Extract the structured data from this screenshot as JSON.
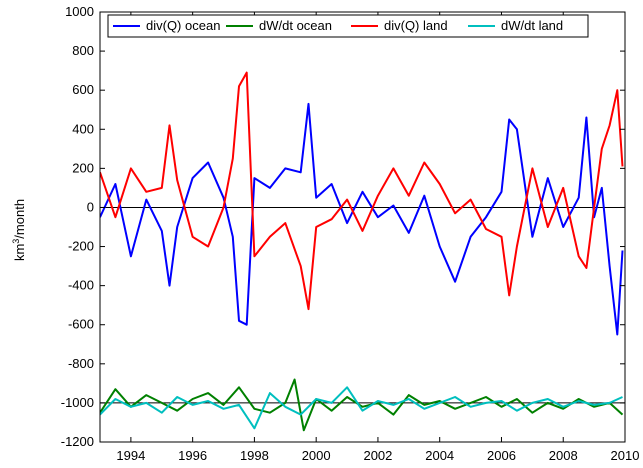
{
  "chart_data": {
    "type": "line",
    "title": "",
    "xlabel": "",
    "ylabel": "km³/month",
    "ylabel_parts": {
      "base": "km",
      "sup": "3",
      "rest": "/month"
    },
    "xlim": [
      1993.0,
      2010.0
    ],
    "ylim": [
      -1200,
      1000
    ],
    "xticks": [
      1994,
      1996,
      1998,
      2000,
      2002,
      2004,
      2006,
      2008,
      2010
    ],
    "yticks": [
      -1200,
      -1000,
      -800,
      -600,
      -400,
      -200,
      0,
      200,
      400,
      600,
      800,
      1000
    ],
    "reference_lines": [
      0,
      -1000
    ],
    "grid": false,
    "legend_position": "top",
    "colors": {
      "div_ocean": "#0000ff",
      "dw_ocean": "#008000",
      "div_land": "#ff0000",
      "dw_land": "#00bfbf",
      "reference": "#000000"
    },
    "series": [
      {
        "name": "div(Q) ocean",
        "key": "div_ocean",
        "x": [
          1993.0,
          1993.5,
          1994.0,
          1994.5,
          1995.0,
          1995.25,
          1995.5,
          1996.0,
          1996.5,
          1997.0,
          1997.3,
          1997.5,
          1997.75,
          1998.0,
          1998.5,
          1999.0,
          1999.5,
          1999.75,
          2000.0,
          2000.5,
          2001.0,
          2001.5,
          2002.0,
          2002.5,
          2003.0,
          2003.5,
          2004.0,
          2004.5,
          2005.0,
          2005.5,
          2006.0,
          2006.25,
          2006.5,
          2007.0,
          2007.5,
          2008.0,
          2008.5,
          2008.75,
          2009.0,
          2009.25,
          2009.5,
          2009.75,
          2009.92
        ],
        "values": [
          -50,
          120,
          -250,
          40,
          -120,
          -400,
          -100,
          150,
          230,
          50,
          -150,
          -580,
          -600,
          150,
          100,
          200,
          180,
          530,
          50,
          120,
          -80,
          80,
          -50,
          10,
          -130,
          60,
          -200,
          -380,
          -150,
          -50,
          80,
          450,
          400,
          -150,
          150,
          -100,
          50,
          460,
          -50,
          100,
          -300,
          -650,
          -220
        ]
      },
      {
        "name": "dW/dt ocean",
        "key": "dw_ocean",
        "x": [
          1993.0,
          1993.5,
          1994.0,
          1994.5,
          1995.0,
          1995.5,
          1996.0,
          1996.5,
          1997.0,
          1997.5,
          1998.0,
          1998.5,
          1999.0,
          1999.3,
          1999.6,
          2000.0,
          2000.5,
          2001.0,
          2001.5,
          2002.0,
          2002.5,
          2003.0,
          2003.5,
          2004.0,
          2004.5,
          2005.0,
          2005.5,
          2006.0,
          2006.5,
          2007.0,
          2007.5,
          2008.0,
          2008.5,
          2009.0,
          2009.5,
          2009.92
        ],
        "values": [
          -1050,
          -930,
          -1020,
          -960,
          -1000,
          -1040,
          -980,
          -950,
          -1010,
          -920,
          -1030,
          -1050,
          -1000,
          -880,
          -1140,
          -980,
          -1040,
          -970,
          -1020,
          -1000,
          -1060,
          -960,
          -1010,
          -990,
          -1030,
          -1000,
          -970,
          -1020,
          -980,
          -1050,
          -1000,
          -1030,
          -980,
          -1020,
          -1000,
          -1060
        ]
      },
      {
        "name": "div(Q) land",
        "key": "div_land",
        "x": [
          1993.0,
          1993.5,
          1994.0,
          1994.5,
          1995.0,
          1995.25,
          1995.5,
          1996.0,
          1996.5,
          1997.0,
          1997.3,
          1997.5,
          1997.75,
          1998.0,
          1998.5,
          1999.0,
          1999.5,
          1999.75,
          2000.0,
          2000.5,
          2001.0,
          2001.5,
          2002.0,
          2002.5,
          2003.0,
          2003.5,
          2004.0,
          2004.5,
          2005.0,
          2005.5,
          2006.0,
          2006.25,
          2006.5,
          2007.0,
          2007.5,
          2008.0,
          2008.5,
          2008.75,
          2009.0,
          2009.25,
          2009.5,
          2009.75,
          2009.92
        ],
        "values": [
          180,
          -50,
          200,
          80,
          100,
          420,
          140,
          -150,
          -200,
          0,
          250,
          620,
          690,
          -250,
          -150,
          -80,
          -300,
          -520,
          -100,
          -60,
          40,
          -120,
          60,
          200,
          60,
          230,
          120,
          -30,
          40,
          -110,
          -150,
          -450,
          -200,
          200,
          -100,
          100,
          -250,
          -310,
          0,
          300,
          420,
          600,
          210
        ]
      },
      {
        "name": "dW/dt land",
        "key": "dw_land",
        "x": [
          1993.0,
          1993.5,
          1994.0,
          1994.5,
          1995.0,
          1995.5,
          1996.0,
          1996.5,
          1997.0,
          1997.5,
          1998.0,
          1998.5,
          1999.0,
          1999.5,
          2000.0,
          2000.5,
          2001.0,
          2001.5,
          2002.0,
          2002.5,
          2003.0,
          2003.5,
          2004.0,
          2004.5,
          2005.0,
          2005.5,
          2006.0,
          2006.5,
          2007.0,
          2007.5,
          2008.0,
          2008.5,
          2009.0,
          2009.5,
          2009.92
        ],
        "values": [
          -1060,
          -980,
          -1020,
          -1000,
          -1050,
          -970,
          -1010,
          -990,
          -1030,
          -1010,
          -1130,
          -950,
          -1020,
          -1060,
          -980,
          -1000,
          -920,
          -1040,
          -990,
          -1010,
          -980,
          -1030,
          -1000,
          -970,
          -1020,
          -1000,
          -990,
          -1040,
          -1000,
          -980,
          -1020,
          -990,
          -1010,
          -1000,
          -970
        ]
      }
    ]
  }
}
